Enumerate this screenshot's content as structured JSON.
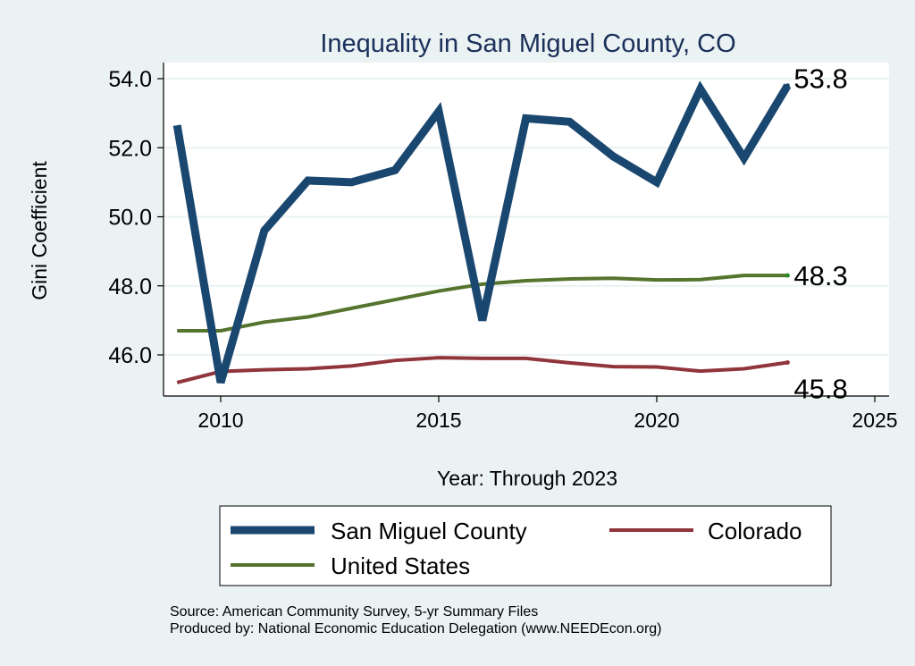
{
  "chart_data": {
    "type": "line",
    "title": "Inequality in San Miguel County, CO",
    "xlabel": "Year: Through 2023",
    "ylabel": "Gini Coefficient",
    "xlim": [
      2008.8,
      2025.4
    ],
    "ylim": [
      45.0,
      54.5
    ],
    "xticks": [
      2010,
      2015,
      2020,
      2025
    ],
    "xtick_labels": [
      "2010",
      "2015",
      "2020",
      "2025"
    ],
    "yticks": [
      46,
      48,
      50,
      52,
      54
    ],
    "ytick_labels": [
      "46.0",
      "48.0",
      "50.0",
      "52.0",
      "54.0"
    ],
    "grid": true,
    "legend_placement": "bottom",
    "x": [
      2009,
      2010,
      2011,
      2012,
      2013,
      2014,
      2015,
      2016,
      2017,
      2018,
      2019,
      2020,
      2021,
      2022,
      2023
    ],
    "series": [
      {
        "name": "San Miguel County",
        "color": "#1a476f",
        "width": 9,
        "values": [
          52.65,
          45.2,
          49.6,
          51.05,
          51.0,
          51.35,
          53.05,
          47.0,
          52.85,
          52.75,
          51.75,
          51.0,
          53.7,
          51.7,
          53.8
        ],
        "end_label": "53.8"
      },
      {
        "name": "United States",
        "color": "#55752f",
        "width": 4,
        "values": [
          46.7,
          46.7,
          46.95,
          47.1,
          47.35,
          47.6,
          47.85,
          48.05,
          48.15,
          48.2,
          48.22,
          48.17,
          48.18,
          48.3,
          48.3
        ],
        "end_label": "48.3"
      },
      {
        "name": "Colorado",
        "color": "#90353b",
        "width": 4,
        "values": [
          45.2,
          45.52,
          45.57,
          45.6,
          45.68,
          45.84,
          45.92,
          45.9,
          45.9,
          45.77,
          45.66,
          45.65,
          45.53,
          45.6,
          45.78
        ],
        "end_label": "45.8"
      }
    ],
    "legend": [
      "San Miguel County",
      "Colorado",
      "United States"
    ],
    "notes": [
      "Source: American Community Survey, 5-yr Summary Files",
      "Produced by: National Economic Education Delegation (www.NEEDEcon.org)"
    ]
  }
}
